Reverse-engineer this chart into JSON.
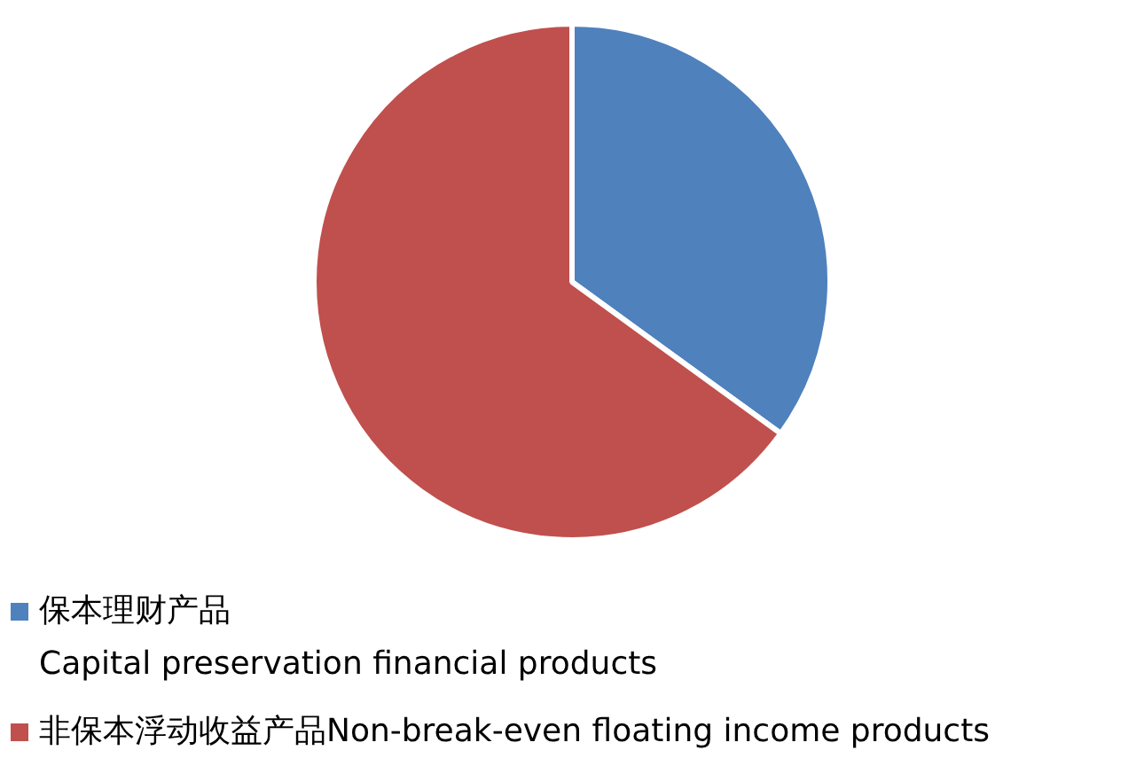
{
  "chart_data": {
    "type": "pie",
    "categories": [
      "保本理财产品\nCapital preservation financial products",
      "非保本浮动收益产品Non-break-even floating income products"
    ],
    "values": [
      35,
      65
    ],
    "colors": [
      "#4f81bd",
      "#c0504d"
    ],
    "legend": "bottom"
  }
}
